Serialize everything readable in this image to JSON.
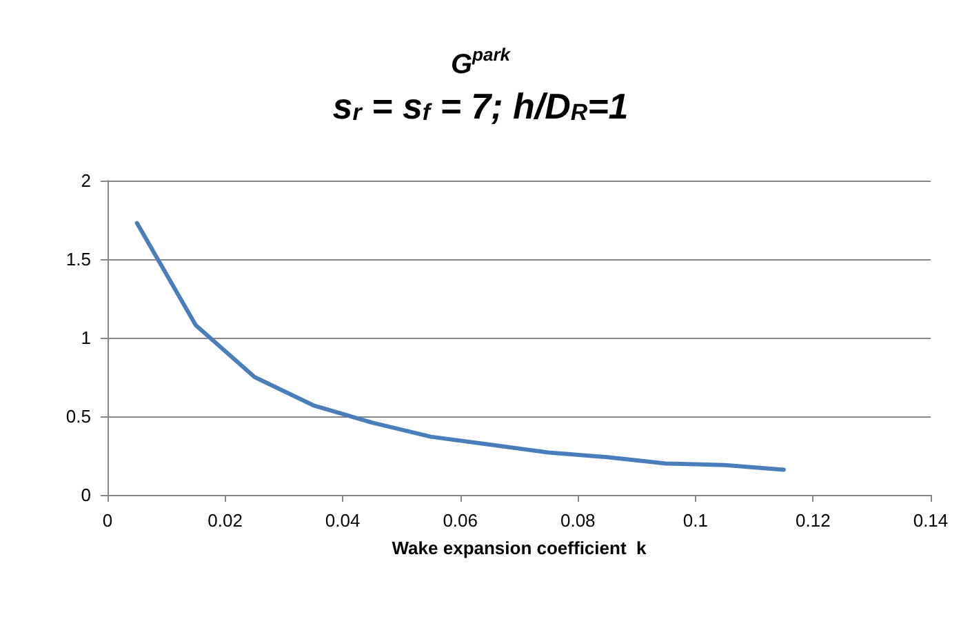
{
  "chart_data": {
    "type": "line",
    "title": "G$^{park}$",
    "subtitle": "s$_{r}$ = s$_{f}$ = 7; h/D$_{R}$=1",
    "xlabel": "Wake expansion coefficient  k",
    "x": [
      0.005,
      0.015,
      0.025,
      0.035,
      0.045,
      0.055,
      0.065,
      0.075,
      0.085,
      0.095,
      0.105,
      0.115
    ],
    "series": [
      {
        "color": "#4a7ebb",
        "values": [
          1.73,
          1.08,
          0.75,
          0.57,
          0.46,
          0.37,
          0.32,
          0.27,
          0.24,
          0.2,
          0.19,
          0.16
        ]
      }
    ],
    "xlim": [
      0,
      0.14
    ],
    "xticks": [
      0,
      0.02,
      0.04,
      0.06,
      0.08,
      0.1,
      0.12,
      0.14
    ],
    "ylim": [
      0,
      2
    ],
    "yticks": [
      0,
      0.5,
      1,
      1.5,
      2
    ],
    "grid": "y",
    "marker": "none",
    "line_style": "solid"
  }
}
